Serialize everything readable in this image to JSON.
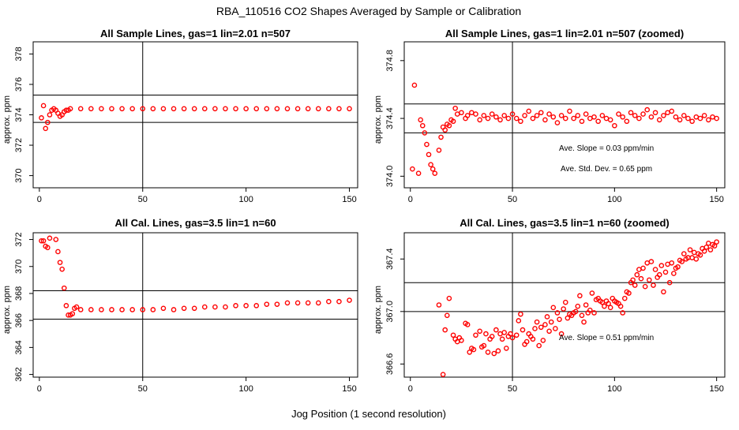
{
  "figure": {
    "title": "RBA_110516  CO2 Shapes Averaged by Sample or Calibration",
    "xlabel": "Jog Position (1 second resolution)"
  },
  "colors": {
    "points": "#ff0000",
    "lines": "#000000",
    "background": "#ffffff"
  },
  "chart_data": [
    {
      "type": "scatter",
      "title": "All Sample Lines, gas=1 lin=2.01 n=507",
      "xlabel": "",
      "ylabel": "approx. ppm",
      "xlim": [
        -3,
        154
      ],
      "ylim": [
        369.2,
        378.8
      ],
      "xticks": [
        0,
        50,
        100,
        150
      ],
      "yticks": [
        370,
        372,
        374,
        376,
        378
      ],
      "ref_lines": {
        "vertical": [
          50
        ],
        "horizontal": [
          373.5,
          375.3
        ]
      },
      "annotations": [],
      "series": [
        {
          "marker": "open-circle",
          "x": [
            1,
            2,
            3,
            4,
            5,
            6,
            7,
            8,
            9,
            10,
            11,
            12,
            13,
            14,
            15,
            20,
            25,
            30,
            35,
            40,
            45,
            50,
            55,
            60,
            65,
            70,
            75,
            80,
            85,
            90,
            95,
            100,
            105,
            110,
            115,
            120,
            125,
            130,
            135,
            140,
            145,
            150
          ],
          "y": [
            373.8,
            374.6,
            373.1,
            373.5,
            374.0,
            374.3,
            374.4,
            374.3,
            374.1,
            373.9,
            374.0,
            374.2,
            374.3,
            374.3,
            374.4,
            374.4,
            374.4,
            374.4,
            374.4,
            374.4,
            374.4,
            374.4,
            374.4,
            374.4,
            374.4,
            374.4,
            374.4,
            374.4,
            374.4,
            374.4,
            374.4,
            374.4,
            374.4,
            374.4,
            374.4,
            374.4,
            374.4,
            374.4,
            374.4,
            374.4,
            374.4,
            374.4
          ]
        }
      ]
    },
    {
      "type": "scatter",
      "title": "All Sample Lines, gas=1 lin=2.01 n=507 (zoomed)",
      "xlabel": "",
      "ylabel": "approx. ppm",
      "xlim": [
        -3,
        154
      ],
      "ylim": [
        373.92,
        374.93
      ],
      "xticks": [
        0,
        50,
        100,
        150
      ],
      "yticks": [
        374.0,
        374.4,
        374.8
      ],
      "tick_labels_y": [
        "374.0",
        "374.4",
        "374.8"
      ],
      "ref_lines": {
        "vertical": [
          50
        ],
        "horizontal": [
          374.3,
          374.5
        ]
      },
      "annotations": [
        "Ave. Slope =  0.03  ppm/min",
        "Ave. Std. Dev. =  0.65  ppm"
      ],
      "series": [
        {
          "marker": "open-circle",
          "x": [
            1,
            2,
            4,
            5,
            6,
            7,
            8,
            9,
            10,
            11,
            12,
            14,
            15,
            16,
            17,
            18,
            19,
            20,
            21,
            22,
            23,
            25,
            27,
            28,
            30,
            32,
            34,
            36,
            38,
            40,
            42,
            44,
            46,
            48,
            50,
            52,
            54,
            56,
            58,
            60,
            62,
            64,
            66,
            68,
            70,
            72,
            74,
            76,
            78,
            80,
            82,
            84,
            86,
            88,
            90,
            92,
            94,
            96,
            98,
            100,
            102,
            104,
            106,
            108,
            110,
            112,
            114,
            116,
            118,
            120,
            122,
            124,
            126,
            128,
            130,
            132,
            134,
            136,
            138,
            140,
            142,
            144,
            146,
            148,
            150
          ],
          "y": [
            374.05,
            374.63,
            374.02,
            374.39,
            374.35,
            374.3,
            374.22,
            374.15,
            374.08,
            374.05,
            374.02,
            374.18,
            374.27,
            374.34,
            374.32,
            374.36,
            374.35,
            374.39,
            374.38,
            374.47,
            374.43,
            374.44,
            374.4,
            374.42,
            374.44,
            374.43,
            374.39,
            374.42,
            374.4,
            374.43,
            374.41,
            374.39,
            374.42,
            374.4,
            374.43,
            374.4,
            374.38,
            374.42,
            374.45,
            374.4,
            374.42,
            374.44,
            374.39,
            374.43,
            374.41,
            374.37,
            374.42,
            374.4,
            374.45,
            374.4,
            374.42,
            374.38,
            374.43,
            374.4,
            374.41,
            374.38,
            374.42,
            374.4,
            374.39,
            374.35,
            374.43,
            374.41,
            374.38,
            374.44,
            374.42,
            374.4,
            374.43,
            374.46,
            374.41,
            374.44,
            374.39,
            374.42,
            374.44,
            374.45,
            374.41,
            374.39,
            374.42,
            374.4,
            374.38,
            374.41,
            374.4,
            374.42,
            374.39,
            374.41,
            374.4
          ]
        }
      ]
    },
    {
      "type": "scatter",
      "title": "All Cal. Lines, gas=3.5 lin=1 n=60",
      "xlabel": "",
      "ylabel": "approx. ppm",
      "xlim": [
        -3,
        154
      ],
      "ylim": [
        361.8,
        372.5
      ],
      "xticks": [
        0,
        50,
        100,
        150
      ],
      "yticks": [
        362,
        364,
        366,
        368,
        370,
        372
      ],
      "ref_lines": {
        "vertical": [
          50
        ],
        "horizontal": [
          366.1,
          368.2
        ]
      },
      "annotations": [],
      "series": [
        {
          "marker": "open-circle",
          "x": [
            1,
            2,
            3,
            4,
            5,
            8,
            9,
            10,
            11,
            12,
            13,
            14,
            15,
            16,
            17,
            18,
            20,
            25,
            30,
            35,
            40,
            45,
            50,
            55,
            60,
            65,
            70,
            75,
            80,
            85,
            90,
            95,
            100,
            105,
            110,
            115,
            120,
            125,
            130,
            135,
            140,
            145,
            150
          ],
          "y": [
            371.9,
            371.9,
            371.5,
            371.4,
            372.1,
            372.0,
            371.1,
            370.3,
            369.8,
            368.4,
            367.1,
            366.4,
            366.4,
            366.5,
            366.9,
            367.0,
            366.8,
            366.8,
            366.8,
            366.8,
            366.8,
            366.8,
            366.8,
            366.8,
            366.9,
            366.8,
            366.9,
            366.9,
            367.0,
            367.0,
            367.0,
            367.1,
            367.1,
            367.1,
            367.2,
            367.2,
            367.3,
            367.3,
            367.3,
            367.3,
            367.4,
            367.4,
            367.5
          ]
        }
      ]
    },
    {
      "type": "scatter",
      "title": "All Cal. Lines, gas=3.5 lin=1 n=60 (zoomed)",
      "xlabel": "",
      "ylabel": "approx. ppm",
      "xlim": [
        -3,
        154
      ],
      "ylim": [
        366.5,
        367.6
      ],
      "xticks": [
        0,
        50,
        100,
        150
      ],
      "yticks": [
        366.6,
        367.0,
        367.4
      ],
      "tick_labels_y": [
        "366.6",
        "367.0",
        "367.4"
      ],
      "ref_lines": {
        "vertical": [
          50
        ],
        "horizontal": [
          367.0,
          367.22
        ]
      },
      "annotations": [
        "Ave. Slope =  0.51  ppm/min"
      ],
      "series": [
        {
          "marker": "open-circle",
          "x": [
            14,
            16,
            17,
            18,
            19,
            21,
            22,
            23,
            24,
            25,
            27,
            28,
            29,
            30,
            31,
            32,
            34,
            35,
            36,
            37,
            38,
            39,
            40,
            41,
            42,
            43,
            44,
            45,
            46,
            47,
            48,
            49,
            50,
            52,
            53,
            54,
            55,
            56,
            57,
            58,
            59,
            60,
            61,
            62,
            63,
            64,
            65,
            66,
            67,
            68,
            69,
            70,
            71,
            72,
            73,
            74,
            75,
            76,
            77,
            78,
            79,
            80,
            81,
            82,
            83,
            84,
            85,
            86,
            87,
            88,
            89,
            90,
            91,
            92,
            93,
            94,
            95,
            96,
            97,
            98,
            99,
            100,
            101,
            102,
            103,
            104,
            105,
            106,
            107,
            108,
            109,
            110,
            111,
            112,
            113,
            114,
            115,
            116,
            117,
            118,
            119,
            120,
            121,
            122,
            123,
            124,
            125,
            126,
            127,
            128,
            129,
            130,
            131,
            132,
            133,
            134,
            135,
            136,
            137,
            138,
            139,
            140,
            141,
            142,
            143,
            144,
            145,
            146,
            147,
            148,
            149,
            150
          ],
          "y": [
            367.05,
            366.52,
            366.86,
            366.97,
            367.1,
            366.82,
            366.79,
            366.77,
            366.8,
            366.78,
            366.91,
            366.9,
            366.69,
            366.72,
            366.71,
            366.82,
            366.85,
            366.73,
            366.74,
            366.83,
            366.69,
            366.79,
            366.81,
            366.68,
            366.86,
            366.7,
            366.83,
            366.79,
            366.84,
            366.72,
            366.81,
            366.83,
            366.8,
            366.82,
            366.93,
            366.98,
            366.86,
            366.75,
            366.77,
            366.83,
            366.81,
            366.79,
            366.87,
            366.92,
            366.74,
            366.88,
            366.78,
            366.9,
            366.96,
            366.85,
            366.92,
            367.03,
            366.87,
            366.99,
            366.94,
            366.83,
            367.02,
            367.07,
            366.95,
            366.98,
            366.97,
            366.99,
            367.0,
            367.04,
            367.12,
            366.97,
            366.92,
            367.05,
            366.99,
            367.01,
            367.14,
            366.99,
            367.09,
            367.1,
            367.08,
            367.07,
            367.04,
            367.08,
            367.06,
            367.03,
            367.1,
            367.08,
            367.07,
            367.06,
            367.04,
            366.99,
            367.1,
            367.15,
            367.14,
            367.22,
            367.24,
            367.2,
            367.28,
            367.32,
            367.25,
            367.33,
            367.19,
            367.37,
            367.24,
            367.38,
            367.2,
            367.32,
            367.26,
            367.28,
            367.35,
            367.15,
            367.3,
            367.36,
            367.22,
            367.37,
            367.29,
            367.33,
            367.34,
            367.39,
            367.38,
            367.44,
            367.4,
            367.41,
            367.47,
            367.41,
            367.45,
            367.4,
            367.44,
            367.43,
            367.48,
            367.46,
            367.49,
            367.52,
            367.47,
            367.51,
            367.5,
            367.53
          ]
        }
      ]
    }
  ]
}
